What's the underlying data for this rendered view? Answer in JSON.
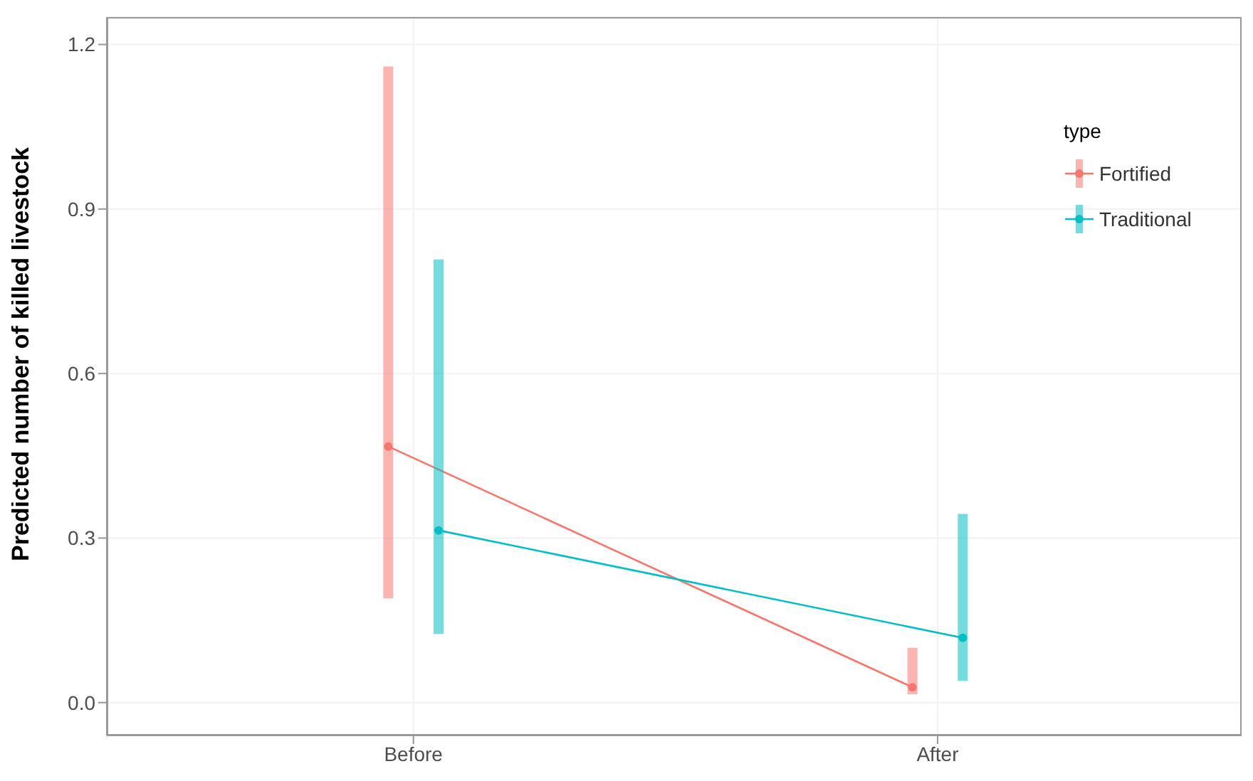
{
  "chart_data": {
    "type": "line",
    "ylabel": "Predicted number of killed livestock",
    "legend_title": "type",
    "categories": [
      "Before",
      "After"
    ],
    "series": [
      {
        "name": "Fortified",
        "color": "#f8766d",
        "values": [
          0.467,
          0.028
        ],
        "errors": [
          [
            0.19,
            1.16
          ],
          [
            0.015,
            0.1
          ]
        ]
      },
      {
        "name": "Traditional",
        "color": "#00bfc4",
        "values": [
          0.314,
          0.118
        ],
        "errors": [
          [
            0.125,
            0.808
          ],
          [
            0.04,
            0.344
          ]
        ]
      }
    ],
    "ylim": [
      -0.06,
      1.25
    ],
    "yticks": [
      {
        "value": 0,
        "label": "0.0"
      },
      {
        "value": 0.3,
        "label": "0.3"
      },
      {
        "value": 0.6,
        "label": "0.6"
      },
      {
        "value": 0.9,
        "label": "0.9"
      },
      {
        "value": 1.2,
        "label": "1.2"
      }
    ],
    "grid": true,
    "legend": "top right",
    "marker": "circle",
    "line_style": "solid"
  }
}
